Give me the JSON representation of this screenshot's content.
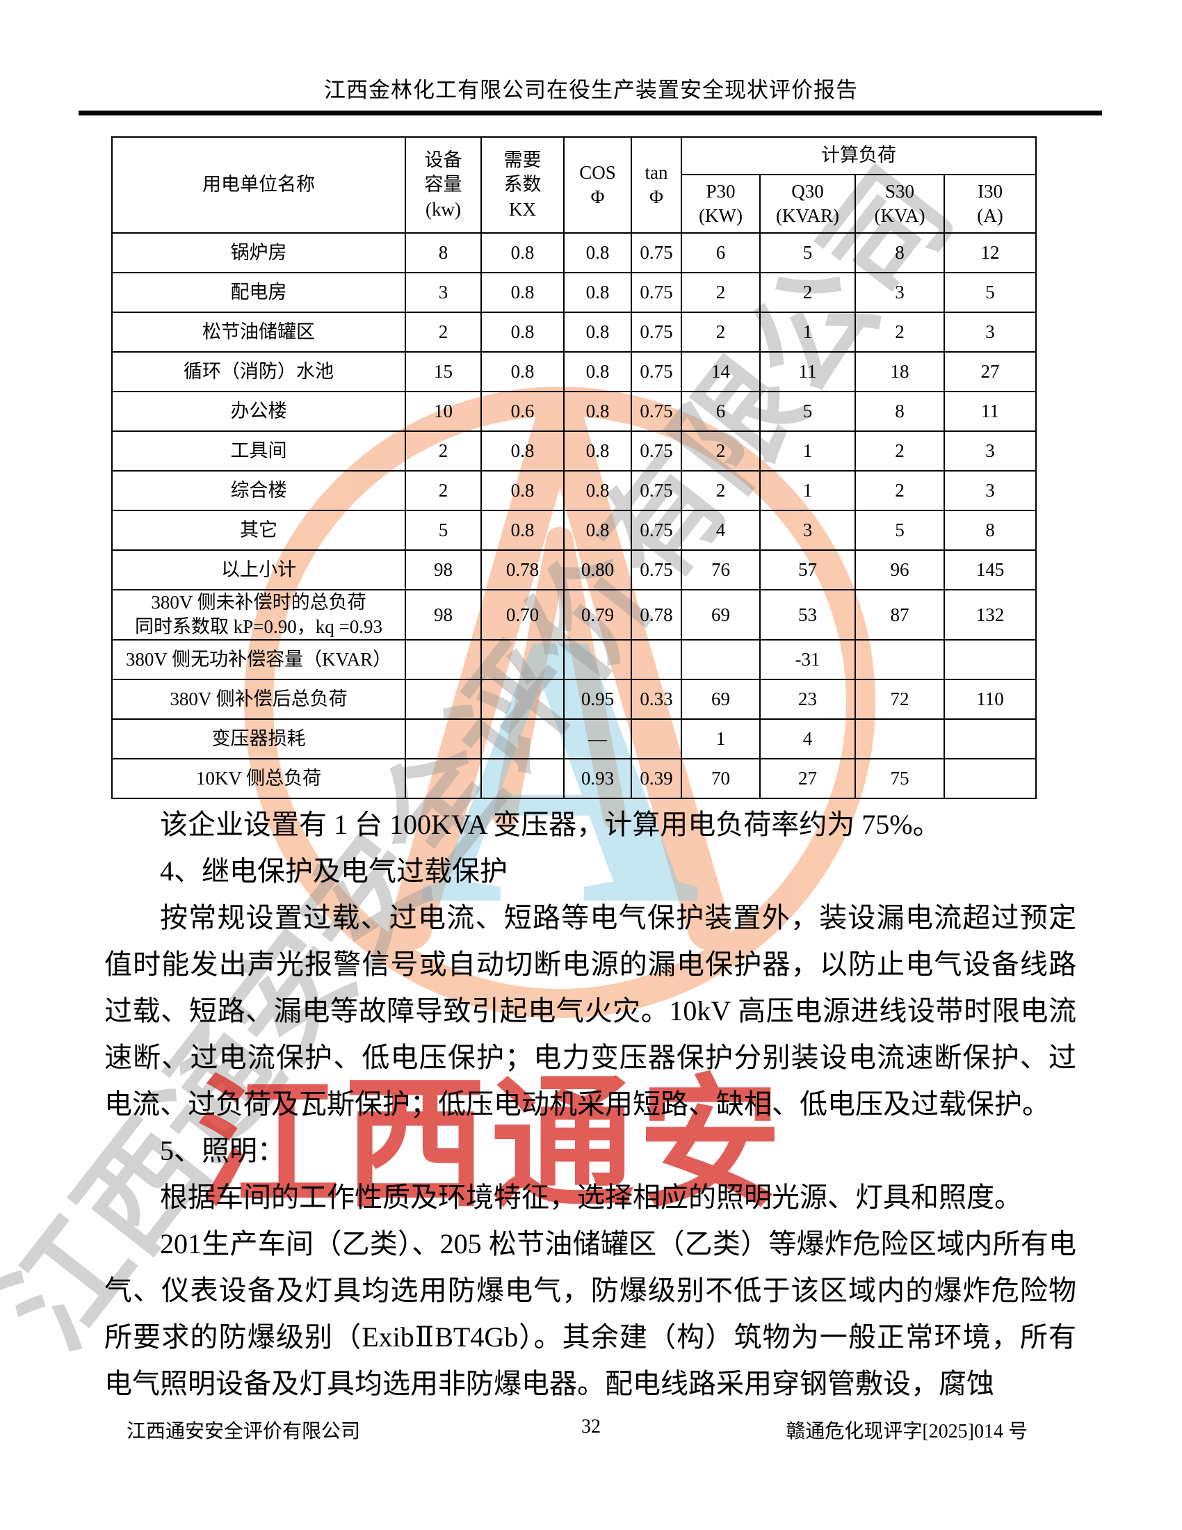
{
  "header": {
    "title": "江西金林化工有限公司在役生产装置安全现状评价报告"
  },
  "table": {
    "header": {
      "name": "用电单位名称",
      "capacity": "设备\n容量\n(kw)",
      "demand_factor": "需要\n系数\nKX",
      "cos_phi": "COS\nΦ",
      "tan_phi": "tan\nΦ",
      "calc_load": "计算负荷",
      "p30": "P30\n(KW)",
      "q30": "Q30\n(KVAR)",
      "s30": "S30\n(KVA)",
      "i30": "I30\n(A)"
    },
    "rows": [
      {
        "cells": [
          "锅炉房",
          "8",
          "0.8",
          "0.8",
          "0.75",
          "6",
          "5",
          "8",
          "12"
        ]
      },
      {
        "cells": [
          "配电房",
          "3",
          "0.8",
          "0.8",
          "0.75",
          "2",
          "2",
          "3",
          "5"
        ]
      },
      {
        "cells": [
          "松节油储罐区",
          "2",
          "0.8",
          "0.8",
          "0.75",
          "2",
          "1",
          "2",
          "3"
        ]
      },
      {
        "cells": [
          "循环（消防）水池",
          "15",
          "0.8",
          "0.8",
          "0.75",
          "14",
          "11",
          "18",
          "27"
        ]
      },
      {
        "cells": [
          "办公楼",
          "10",
          "0.6",
          "0.8",
          "0.75",
          "6",
          "5",
          "8",
          "11"
        ]
      },
      {
        "cells": [
          "工具间",
          "2",
          "0.8",
          "0.8",
          "0.75",
          "2",
          "1",
          "2",
          "3"
        ]
      },
      {
        "cells": [
          "综合楼",
          "2",
          "0.8",
          "0.8",
          "0.75",
          "2",
          "1",
          "2",
          "3"
        ]
      },
      {
        "cells": [
          "其它",
          "5",
          "0.8",
          "0.8",
          "0.75",
          "4",
          "3",
          "5",
          "8"
        ]
      },
      {
        "cells": [
          "以上小计",
          "98",
          "0.78",
          "0.80",
          "0.75",
          "76",
          "57",
          "96",
          "145"
        ]
      },
      {
        "cells": [
          "380V 侧未补偿时的总负荷\n同时系数取 kP=0.90，kq =0.93",
          "98",
          "0.70",
          "0.79",
          "0.78",
          "69",
          "53",
          "87",
          "132"
        ]
      },
      {
        "cells": [
          "380V 侧无功补偿容量（KVAR）",
          "",
          "",
          "",
          "",
          "",
          "-31",
          "",
          ""
        ]
      },
      {
        "cells": [
          "380V 侧补偿后总负荷",
          "",
          "",
          "0.95",
          "0.33",
          "69",
          "23",
          "72",
          "110"
        ]
      },
      {
        "cells": [
          "变压器损耗",
          "",
          "",
          "—",
          "",
          "1",
          "4",
          "",
          ""
        ]
      },
      {
        "cells": [
          "10KV 侧总负荷",
          "",
          "",
          "0.93",
          "0.39",
          "70",
          "27",
          "75",
          ""
        ]
      }
    ]
  },
  "body": {
    "paragraphs": [
      "该企业设置有 1 台 100KVA 变压器，计算用电负荷率约为 75%。",
      "4、继电保护及电气过载保护",
      "按常规设置过载、过电流、短路等电气保护装置外，装设漏电流超过预定值时能发出声光报警信号或自动切断电源的漏电保护器，以防止电气设备线路过载、短路、漏电等故障导致引起电气火灾。10kV 高压电源进线设带时限电流速断、过电流保护、低电压保护；电力变压器保护分别装设电流速断保护、过电流、过负荷及瓦斯保护；低压电动机采用短路、缺相、低电压及过载保护。",
      "5、照明：",
      "根据车间的工作性质及环境特征，选择相应的照明光源、灯具和照度。",
      "201生产车间（乙类）、205 松节油储罐区（乙类）等爆炸危险区域内所有电气、仪表设备及灯具均选用防爆电气，防爆级别不低于该区域内的爆炸危险物所要求的防爆级别（ExibⅡBT4Gb）。其余建（构）筑物为一般正常环境，所有电气照明设备及灯具均选用非防爆电器。配电线路采用穿钢管敷设，腐蚀"
    ]
  },
  "footer": {
    "company": "江西通安安全评价有限公司",
    "page_number": "32",
    "doc_number": "赣通危化现评字[2025]014 号"
  },
  "watermark": {
    "diagonal_text": "江西通安安全评价有限公司",
    "red_text": "江西通安",
    "logo_letter": "A",
    "colors": {
      "orange": "#F5A06E",
      "blue": "#82C8E4",
      "gray": "#969696",
      "red": "#D93028"
    }
  }
}
